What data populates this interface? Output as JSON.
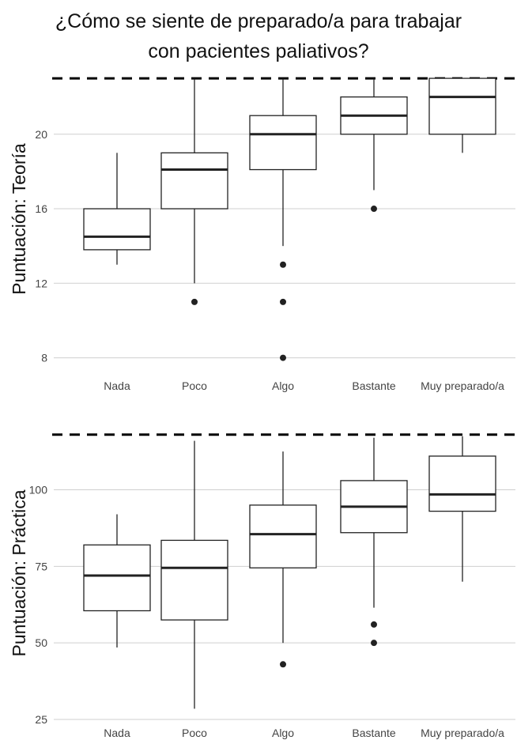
{
  "title_lines": [
    "¿Cómo se siente de preparado/a para trabajar",
    "con pacientes paliativos?"
  ],
  "colors": {
    "grid": "#cfcfcf",
    "box": "#222222",
    "text": "#444444",
    "reference_line": "#000000"
  },
  "chart_data": [
    {
      "type": "boxplot",
      "ylabel": "Puntuación: Teoría",
      "categories": [
        "Nada",
        "Poco",
        "Algo",
        "Bastante",
        "Muy preparado/a"
      ],
      "yticks": [
        8,
        12,
        16,
        20
      ],
      "ylim": [
        7.6,
        23.3
      ],
      "reference_line": {
        "y": 23,
        "style": "dashed"
      },
      "grid": true,
      "boxes": [
        {
          "category": "Nada",
          "whisker_low": 13,
          "q1": 13.8,
          "median": 14.5,
          "q3": 16,
          "whisker_high": 19,
          "outliers": []
        },
        {
          "category": "Poco",
          "whisker_low": 12,
          "q1": 16,
          "median": 18.1,
          "q3": 19,
          "whisker_high": 23,
          "outliers": [
            11
          ]
        },
        {
          "category": "Algo",
          "whisker_low": 14,
          "q1": 18.1,
          "median": 20,
          "q3": 21,
          "whisker_high": 23,
          "outliers": [
            13,
            11,
            8
          ]
        },
        {
          "category": "Bastante",
          "whisker_low": 17,
          "q1": 20,
          "median": 21,
          "q3": 22,
          "whisker_high": 23,
          "outliers": [
            16
          ]
        },
        {
          "category": "Muy preparado/a",
          "whisker_low": 19,
          "q1": 20,
          "median": 22,
          "q3": 23,
          "whisker_high": 23,
          "outliers": []
        }
      ]
    },
    {
      "type": "boxplot",
      "ylabel": "Puntuación: Práctica",
      "categories": [
        "Nada",
        "Poco",
        "Algo",
        "Bastante",
        "Muy preparado/a"
      ],
      "yticks": [
        25,
        50,
        75,
        100
      ],
      "ylim": [
        25,
        119.5
      ],
      "reference_line": {
        "y": 118,
        "style": "dashed"
      },
      "grid": true,
      "boxes": [
        {
          "category": "Nada",
          "whisker_low": 48.5,
          "q1": 60.5,
          "median": 72,
          "q3": 82,
          "whisker_high": 92,
          "outliers": []
        },
        {
          "category": "Poco",
          "whisker_low": 28.5,
          "q1": 57.5,
          "median": 74.5,
          "q3": 83.5,
          "whisker_high": 116,
          "outliers": []
        },
        {
          "category": "Algo",
          "whisker_low": 50,
          "q1": 74.5,
          "median": 85.5,
          "q3": 95,
          "whisker_high": 112.5,
          "outliers": [
            43
          ]
        },
        {
          "category": "Bastante",
          "whisker_low": 61.5,
          "q1": 86,
          "median": 94.5,
          "q3": 103,
          "whisker_high": 117,
          "outliers": [
            56,
            50
          ]
        },
        {
          "category": "Muy preparado/a",
          "whisker_low": 70,
          "q1": 93,
          "median": 98.5,
          "q3": 111,
          "whisker_high": 117.5,
          "outliers": []
        }
      ]
    }
  ]
}
